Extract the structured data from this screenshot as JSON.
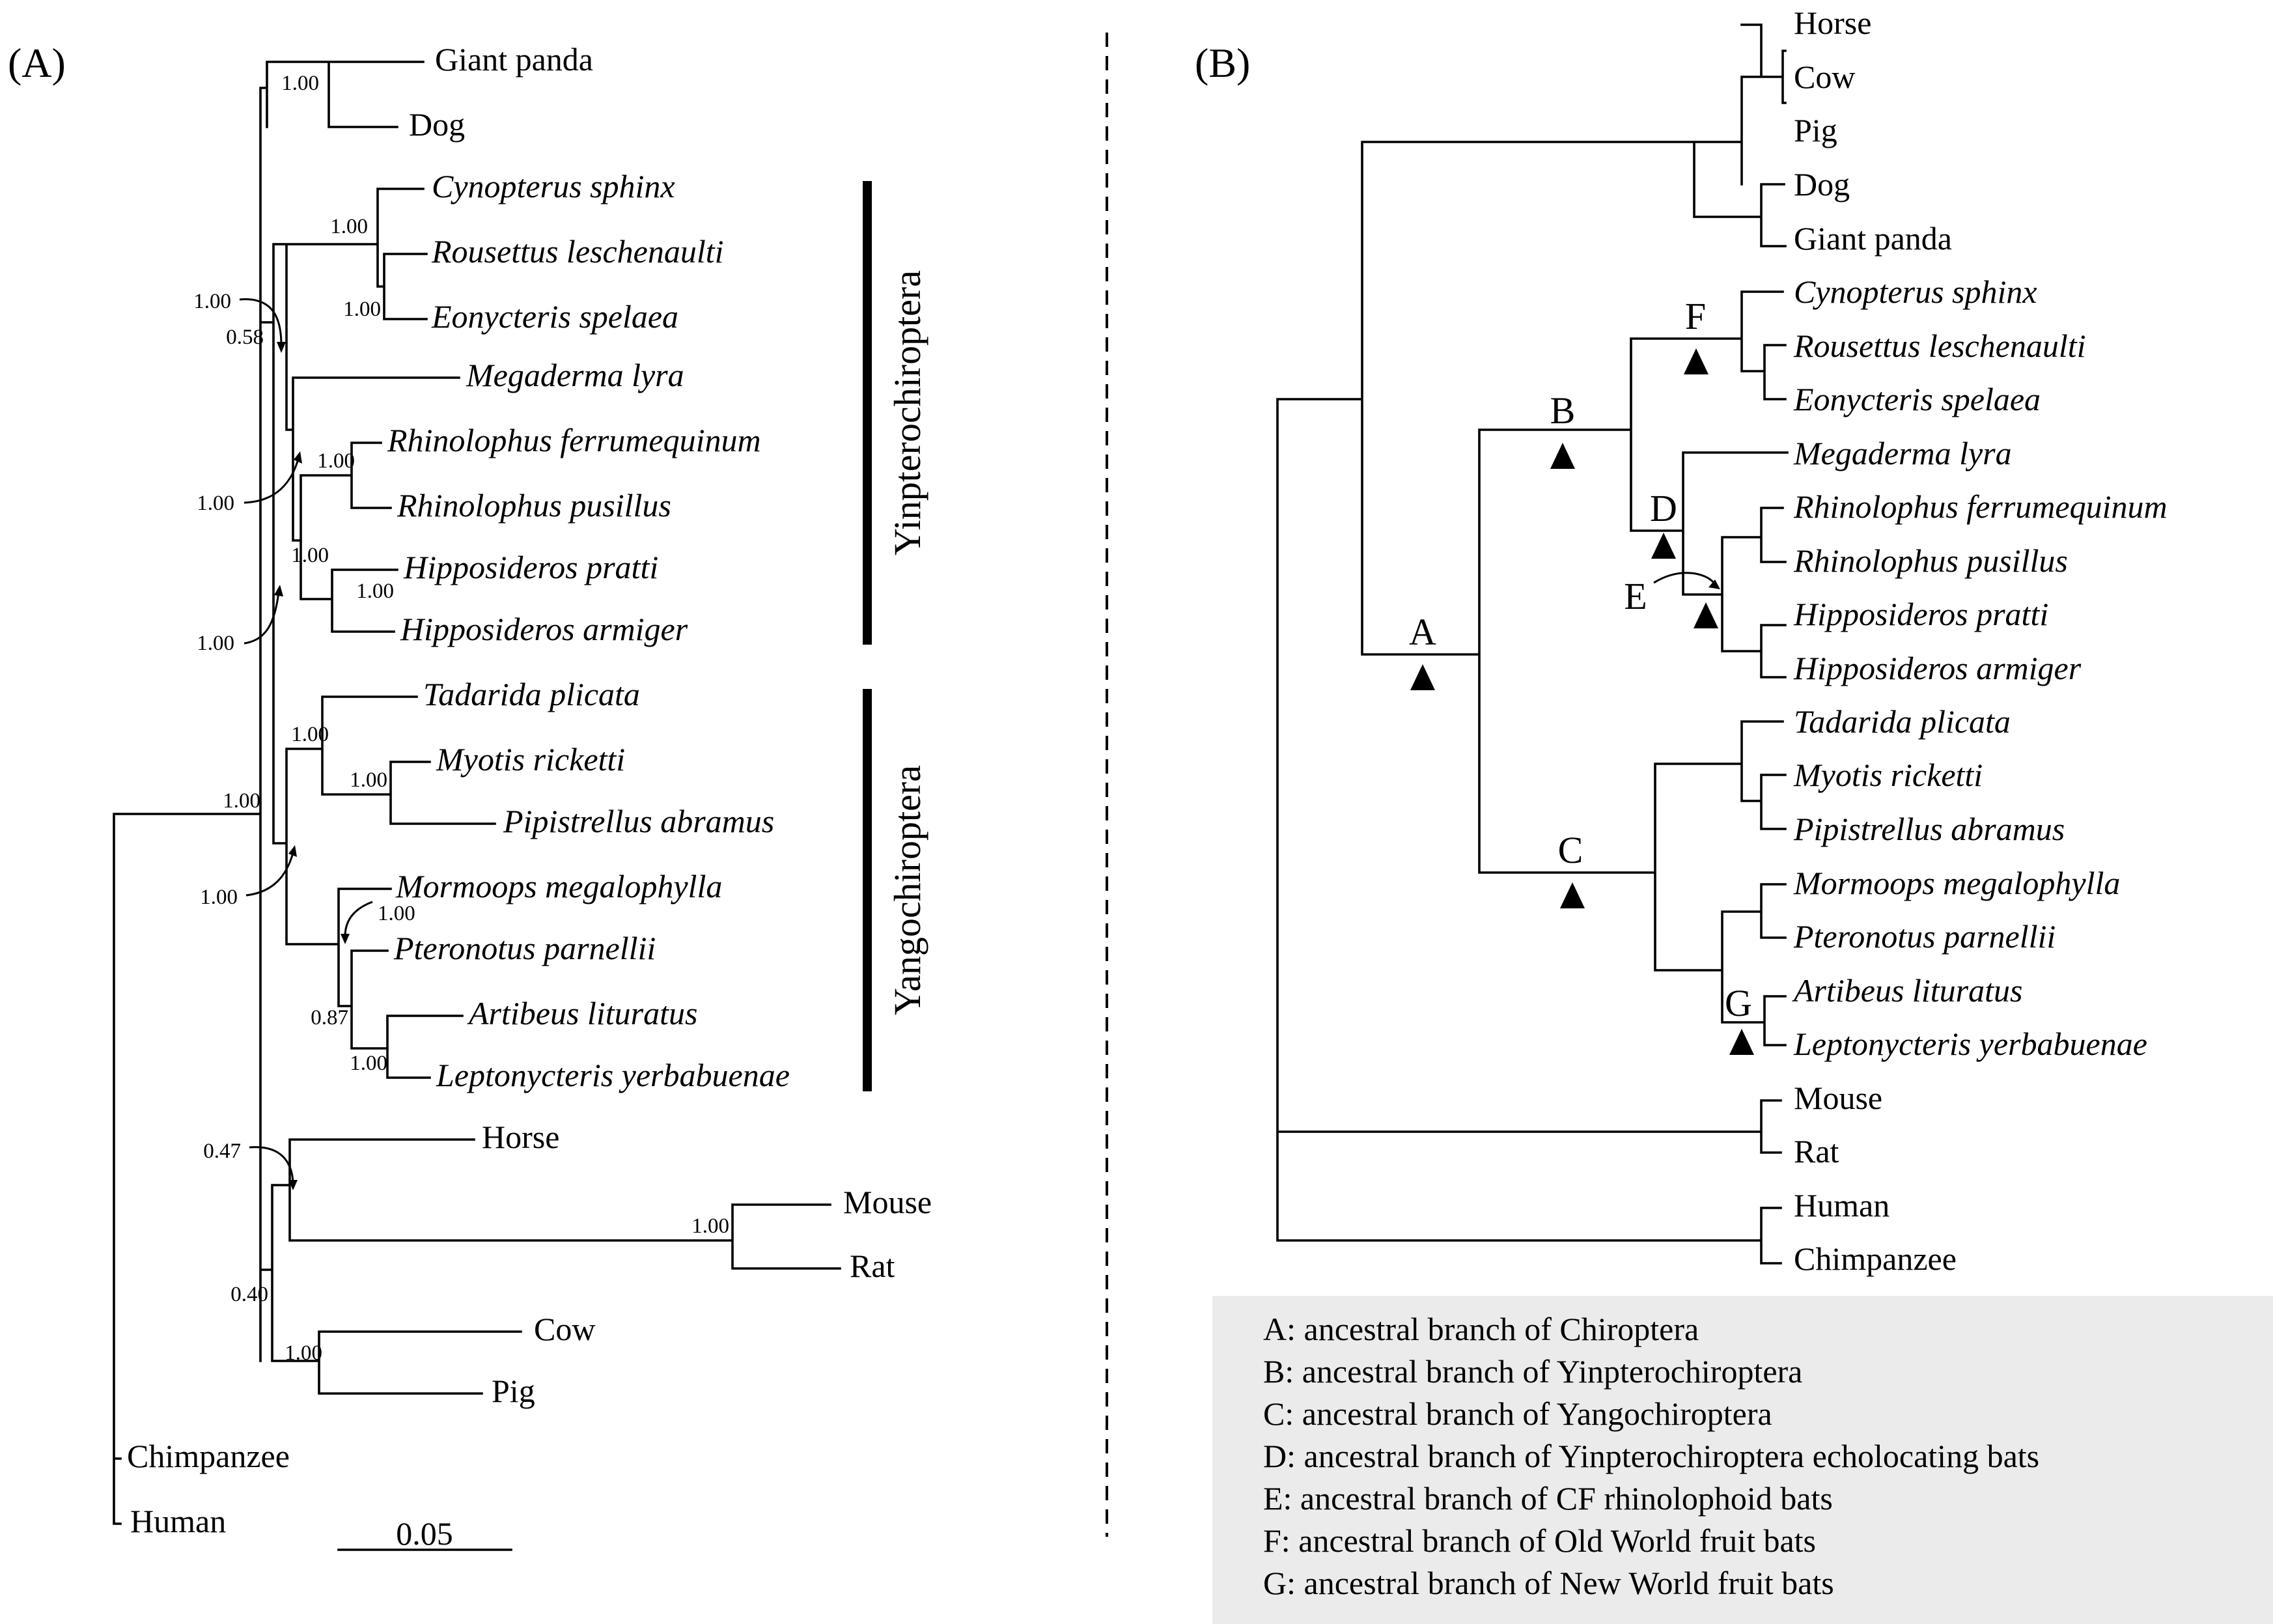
{
  "panels": {
    "a": "(A)",
    "b": "(B)"
  },
  "tree_a": {
    "taxa": {
      "giant_panda": "Giant panda",
      "dog": "Dog",
      "cynopterus": "Cynopterus sphinx",
      "rousettus": "Rousettus leschenaulti",
      "eonycteris": "Eonycteris spelaea",
      "megaderma": "Megaderma lyra",
      "rh_ferrum": "Rhinolophus ferrumequinum",
      "rh_pusillus": "Rhinolophus pusillus",
      "hi_pratti": "Hipposideros pratti",
      "hi_armiger": "Hipposideros armiger",
      "tadarida": "Tadarida plicata",
      "myotis": "Myotis ricketti",
      "pipistrellus": "Pipistrellus abramus",
      "mormoops": "Mormoops megalophylla",
      "pteronotus": "Pteronotus parnellii",
      "artibeus": "Artibeus lituratus",
      "leptonycteris": "Leptonycteris yerbabuenae",
      "horse": "Horse",
      "mouse": "Mouse",
      "rat": "Rat",
      "cow": "Cow",
      "pig": "Pig",
      "chimpanzee": "Chimpanzee",
      "human": "Human"
    },
    "support": {
      "panda_dog": "1.00",
      "pteropodid": "1.00",
      "rousettus_eonycteris": "1.00",
      "yinptero_arrow": "1.00",
      "chiroptera": "0.58",
      "rhinolophoid_arrow": "1.00",
      "rhinolophus": "1.00",
      "rhinolophoid": "1.00",
      "hipposideros": "1.00",
      "bats_arrow": "1.00",
      "vespertilionoid": "1.00",
      "myotis_pip": "1.00",
      "yango_arrow": "1.00",
      "mormoopid_arrow": "1.00",
      "noctilionoid": "0.87",
      "phyllostomid": "1.00",
      "root": "1.00",
      "horse_rodent_arrow": "0.47",
      "mouse_rat": "1.00",
      "laurasia_rodent": "0.40",
      "cow_pig": "1.00"
    },
    "clades": {
      "yinptero": "Yinpterochiroptera",
      "yango": "Yangochiroptera"
    },
    "scale_label": "0.05"
  },
  "tree_b": {
    "taxa": {
      "horse": "Horse",
      "cow": "Cow",
      "pig": "Pig",
      "dog": "Dog",
      "giant_panda": "Giant panda",
      "cynopterus": "Cynopterus sphinx",
      "rousettus": "Rousettus leschenaulti",
      "eonycteris": "Eonycteris spelaea",
      "megaderma": "Megaderma lyra",
      "rh_ferrum": "Rhinolophus ferrumequinum",
      "rh_pusillus": "Rhinolophus pusillus",
      "hi_pratti": "Hipposideros pratti",
      "hi_armiger": "Hipposideros armiger",
      "tadarida": "Tadarida plicata",
      "myotis": "Myotis ricketti",
      "pipistrellus": "Pipistrellus abramus",
      "mormoops": "Mormoops megalophylla",
      "pteronotus": "Pteronotus parnellii",
      "artibeus": "Artibeus lituratus",
      "leptonycteris": "Leptonycteris yerbabuenae",
      "mouse": "Mouse",
      "rat": "Rat",
      "human": "Human",
      "chimpanzee": "Chimpanzee"
    },
    "branch_labels": {
      "a": "A",
      "b": "B",
      "c": "C",
      "d": "D",
      "e": "E",
      "f": "F",
      "g": "G"
    }
  },
  "legend": [
    "A: ancestral branch of Chiroptera",
    "B: ancestral branch of Yinpterochiroptera",
    "C: ancestral branch of Yangochiroptera",
    "D: ancestral branch of Yinpterochiroptera echolocating bats",
    "E: ancestral branch of CF rhinolophoid bats",
    "F: ancestral branch of Old World fruit bats",
    "G: ancestral branch of New World fruit bats"
  ],
  "colors": {
    "line": "#000000",
    "legend_bg": "#ebebeb",
    "background": "#ffffff"
  }
}
